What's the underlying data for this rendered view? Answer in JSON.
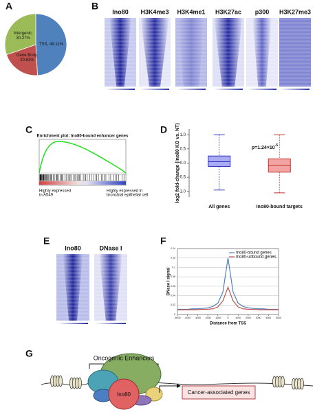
{
  "panel_labels": [
    "A",
    "B",
    "C",
    "D",
    "E",
    "F",
    "G"
  ],
  "chart_data": [
    {
      "type": "pie",
      "values": [
        49.11,
        20.63,
        30.27
      ],
      "value_labels": [
        [
          "TSS, 49.11%"
        ],
        [
          "Gene Body,",
          "20.63%"
        ],
        [
          "Intergenic,",
          "30.27%"
        ]
      ],
      "colors": [
        "#4f81bd",
        "#c0504d",
        "#9bbb59"
      ]
    },
    {
      "type": "box",
      "ylabel": "log2 fold-change (Ino80 KO vs. NT)",
      "categories": [
        "All genes",
        "Ino80-bound targets"
      ],
      "whisker_low": [
        -0.95,
        -1.05
      ],
      "q1": [
        -0.12,
        -0.32
      ],
      "median": [
        0.05,
        -0.08
      ],
      "q3": [
        0.25,
        0.15
      ],
      "whisker_high": [
        1.0,
        1.0
      ],
      "fill_colors": [
        "#a9acf2",
        "#f4a3a3"
      ],
      "line_colors": [
        "#3030c0",
        "#c03030"
      ],
      "ylim": [
        -1.2,
        1.2
      ],
      "yticks": [
        {
          "value": -1,
          "label": "-1.0"
        },
        {
          "value": -0.5,
          "label": "-0.5"
        },
        {
          "value": 0,
          "label": "0.0"
        },
        {
          "value": 0.5,
          "label": "0.5"
        },
        {
          "value": 1,
          "label": "1.0"
        }
      ],
      "annotation": {
        "text": "p=1.24×10",
        "exponent": "-5"
      }
    },
    {
      "type": "line",
      "xlabel": "Distance from TSS",
      "ylabel": "DNase I signal",
      "x": [
        -5000,
        -4500,
        -4000,
        -3500,
        -3000,
        -2500,
        -2000,
        -1500,
        -1000,
        -500,
        0,
        500,
        1000,
        1500,
        2000,
        2500,
        3000,
        3500,
        4000,
        4500,
        5000
      ],
      "series": [
        {
          "name": "Ino80-bound genes",
          "color": "#4f81bd",
          "values": [
            0.011,
            0.011,
            0.011,
            0.012,
            0.012,
            0.013,
            0.014,
            0.017,
            0.024,
            0.048,
            0.12,
            0.048,
            0.024,
            0.017,
            0.014,
            0.013,
            0.012,
            0.012,
            0.011,
            0.011,
            0.011
          ]
        },
        {
          "name": "Ino80-unbound genes",
          "color": "#c0504d",
          "values": [
            0.01,
            0.01,
            0.01,
            0.01,
            0.01,
            0.011,
            0.011,
            0.012,
            0.016,
            0.029,
            0.058,
            0.029,
            0.016,
            0.012,
            0.011,
            0.011,
            0.01,
            0.01,
            0.01,
            0.01,
            0.01
          ]
        }
      ],
      "xlim": [
        -5000,
        5000
      ],
      "xticks": [
        -5000,
        -4000,
        -3000,
        -2000,
        -1000,
        0,
        1000,
        2000,
        3000,
        4000,
        5000
      ],
      "ylim": [
        0,
        0.14
      ],
      "yticks": [
        0,
        0.02,
        0.04,
        0.06,
        0.08,
        0.1,
        0.12,
        0.14
      ],
      "grid": true,
      "legend": "top-right"
    }
  ],
  "heatmaps_b": {
    "titles": [
      "Ino80",
      "H3K4me3",
      "H3K4me1",
      "H3K27ac",
      "p300",
      "H3K27me3"
    ]
  },
  "gsea": {
    "title": "Enrichment plot: Ino80-bound enhancer genes",
    "left_label": [
      "Highly expressed",
      "in A549"
    ],
    "right_label": [
      "Highly expressed in",
      "bronchial epithelial cell"
    ]
  },
  "heatmaps_e": {
    "titles": [
      "Ino80",
      "DNase I"
    ]
  },
  "diagram": {
    "enhancers_label": "Oncogenic Enhancers",
    "complex_label": "Ino80",
    "genes_label": "Cancer-associated genes"
  }
}
